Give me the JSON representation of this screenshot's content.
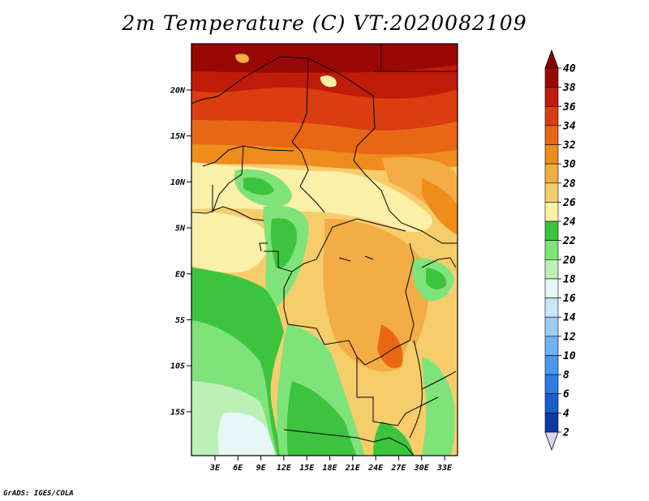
{
  "title": "2m Temperature (C) VT:2020082109",
  "credit": "GrADS: IGES/COLA",
  "map": {
    "lat_labels": [
      "20N",
      "15N",
      "10N",
      "5N",
      "EQ",
      "5S",
      "10S",
      "15S"
    ],
    "lon_labels": [
      "3E",
      "6E",
      "9E",
      "12E",
      "15E",
      "18E",
      "21E",
      "24E",
      "27E",
      "30E",
      "33E"
    ]
  },
  "colorbar": {
    "levels": [
      "2",
      "4",
      "6",
      "8",
      "10",
      "12",
      "14",
      "16",
      "18",
      "20",
      "22",
      "24",
      "26",
      "28",
      "30",
      "32",
      "34",
      "36",
      "38",
      "40"
    ],
    "colors": [
      "#0c0f6b",
      "#0d3aa8",
      "#1760cc",
      "#2c7de2",
      "#4a97ee",
      "#70b2f5",
      "#9bcdf8",
      "#c9e6fb",
      "#e6f7f7",
      "#bdf0b7",
      "#7fe37b",
      "#3dc43f",
      "#fbf0a8",
      "#f7cd6c",
      "#f3ad44",
      "#ee8c1c",
      "#e86614",
      "#da3e10",
      "#c11b0a",
      "#9a0805"
    ],
    "under_color": "#d7d7f5",
    "over_color": "#8b0000"
  },
  "chart_data": {
    "type": "heatmap",
    "title": "2m Temperature (C) VT:2020082109",
    "x_ticks": [
      "3E",
      "6E",
      "9E",
      "12E",
      "15E",
      "18E",
      "21E",
      "24E",
      "27E",
      "30E",
      "33E"
    ],
    "y_ticks": [
      "20N",
      "15N",
      "10N",
      "5N",
      "EQ",
      "5S",
      "10S",
      "15S"
    ],
    "color_levels": [
      2,
      4,
      6,
      8,
      10,
      12,
      14,
      16,
      18,
      20,
      22,
      24,
      26,
      28,
      30,
      32,
      34,
      36,
      38,
      40
    ],
    "value_range": [
      2,
      40
    ]
  }
}
